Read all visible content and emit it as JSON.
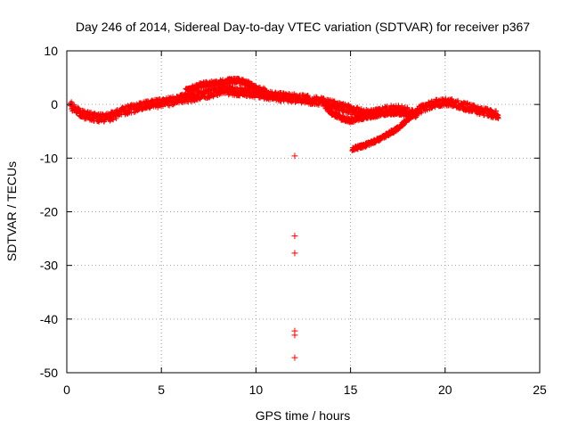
{
  "chart_data": {
    "type": "scatter",
    "title": "Day 246 of 2014, Sidereal Day-to-day VTEC variation (SDTVAR) for receiver p367",
    "xlabel": "GPS time / hours",
    "ylabel": "SDTVAR / TECUs",
    "xlim": [
      0,
      25
    ],
    "ylim": [
      -50,
      10
    ],
    "xticks": [
      0,
      5,
      10,
      15,
      20,
      25
    ],
    "yticks": [
      -50,
      -40,
      -30,
      -20,
      -10,
      0,
      10
    ],
    "grid": true,
    "marker": "plus",
    "color": "#ff0000",
    "series": [
      {
        "name": "p367",
        "trend": {
          "x": [
            0.2,
            0.4,
            0.7,
            1.0,
            1.5,
            2.0,
            2.5,
            3.0,
            4.0,
            5.0,
            5.5,
            6.0,
            6.5,
            7.0,
            7.5,
            8.0,
            8.5,
            9.0,
            9.5,
            10.0,
            10.5,
            11.0,
            11.5,
            12.0,
            12.5,
            13.0,
            13.5,
            14.0,
            14.5,
            15.0,
            15.5,
            16.0,
            16.5,
            17.0,
            17.5,
            18.0
          ],
          "y": [
            0.0,
            -1.0,
            -1.5,
            -2.0,
            -2.4,
            -2.6,
            -2.0,
            -1.2,
            -0.3,
            0.3,
            0.6,
            1.0,
            1.3,
            1.6,
            2.0,
            2.5,
            2.6,
            2.4,
            2.3,
            2.0,
            1.8,
            1.5,
            1.3,
            1.2,
            1.0,
            0.8,
            0.5,
            0.0,
            -0.5,
            -1.0,
            -1.5,
            -1.8,
            -1.5,
            -1.0,
            -0.8,
            -1.2
          ],
          "spread": 1.6
        },
        "upper_branch": {
          "x": [
            6.3,
            7.0,
            7.5,
            8.0,
            8.5,
            9.0,
            9.5,
            10.0,
            10.5
          ],
          "y": [
            2.5,
            3.5,
            3.8,
            4.0,
            4.3,
            4.5,
            4.0,
            3.0,
            2.5
          ],
          "spread": 1.0
        },
        "lower_branch": {
          "x": [
            13.7,
            14.0,
            14.5,
            15.0,
            15.5,
            16.0,
            16.5,
            17.0,
            17.5,
            18.0,
            18.5
          ],
          "y": [
            -0.5,
            -1.5,
            -2.5,
            -3.0,
            -2.5,
            -2.0,
            -1.8,
            -1.5,
            -1.5,
            -1.8,
            -2.0
          ],
          "spread": 0.9
        },
        "dip_branch": {
          "x": [
            18.2,
            17.5,
            17.0,
            16.5,
            16.0,
            15.5,
            15.1
          ],
          "y": [
            -2.2,
            -4.5,
            -5.5,
            -6.5,
            -7.3,
            -7.9,
            -8.3
          ],
          "spread": 0.7
        },
        "late_trend": {
          "x": [
            18.0,
            18.5,
            19.0,
            19.5,
            20.0,
            20.5,
            21.0,
            21.5,
            22.0,
            22.5,
            22.8
          ],
          "y": [
            -2.0,
            -1.2,
            -0.5,
            0.2,
            0.5,
            0.2,
            -0.3,
            -0.8,
            -1.3,
            -1.8,
            -2.0
          ],
          "spread": 1.5
        },
        "outliers": {
          "x": [
            12.05,
            12.05,
            12.05,
            12.05,
            12.05,
            12.05
          ],
          "y": [
            -9.6,
            -24.5,
            -27.7,
            -42.2,
            -43.0,
            -47.2
          ]
        }
      }
    ]
  }
}
